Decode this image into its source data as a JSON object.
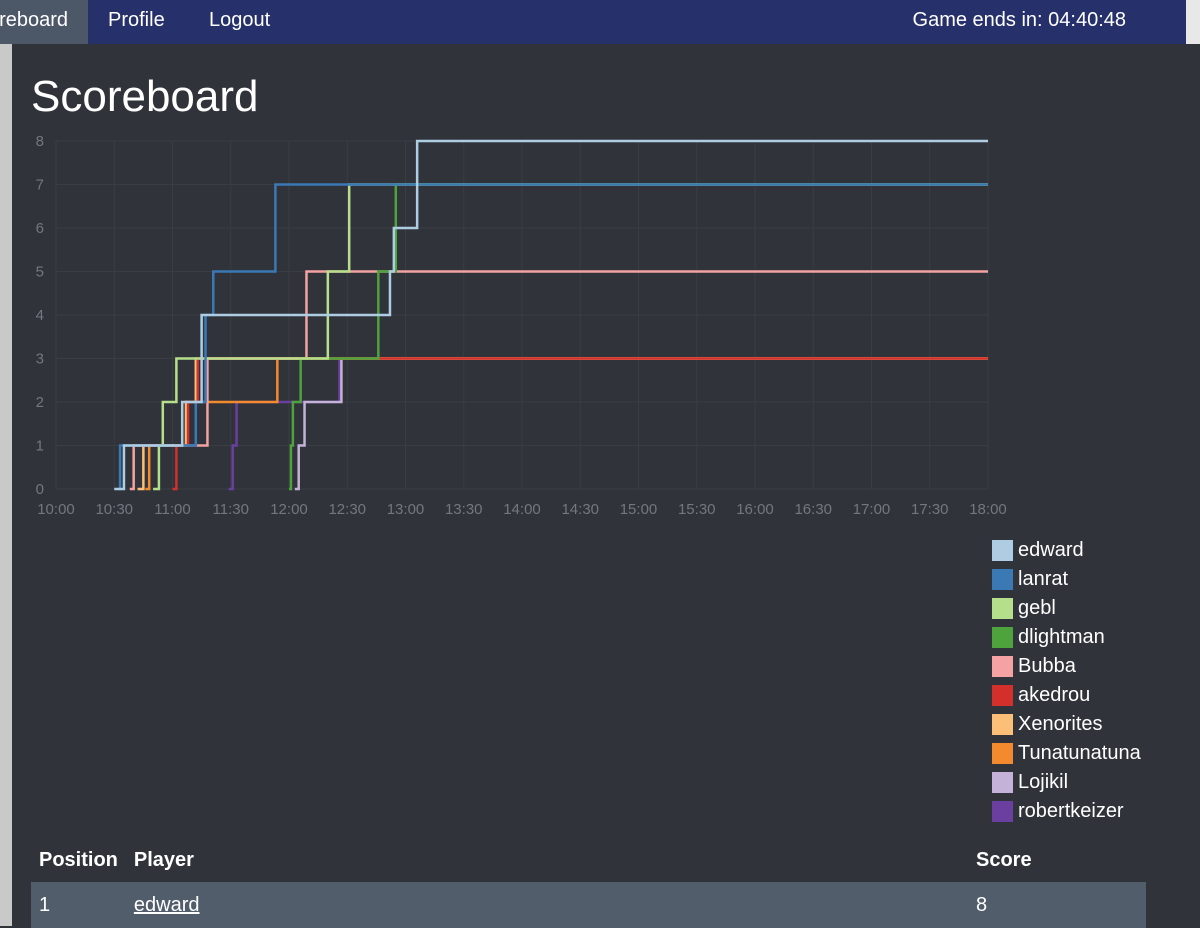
{
  "nav": {
    "items": [
      {
        "label": "reboard",
        "active": true
      },
      {
        "label": "Profile"
      },
      {
        "label": "Logout"
      }
    ],
    "timer": "Game ends in: 04:40:48"
  },
  "page": {
    "title": "Scoreboard"
  },
  "colors": {
    "topbar": "#26306a",
    "background": "#30333a",
    "active_nav": "#4c5768",
    "table_row": "#525d6c"
  },
  "chart_data": {
    "type": "line",
    "step": true,
    "title": "",
    "xlabel": "",
    "ylabel": "",
    "ylim": [
      0,
      8
    ],
    "xlim": [
      "10:00",
      "18:00"
    ],
    "yticks": [
      "0",
      "1",
      "2",
      "3",
      "4",
      "5",
      "6",
      "7",
      "8"
    ],
    "xticks": [
      "10:00",
      "10:30",
      "11:00",
      "11:30",
      "12:00",
      "12:30",
      "13:00",
      "13:30",
      "14:00",
      "14:30",
      "15:00",
      "15:30",
      "16:00",
      "16:30",
      "17:00",
      "17:30",
      "18:00"
    ],
    "grid": true,
    "legend": "bottom-right",
    "series": [
      {
        "name": "edward",
        "color": "#aecde3",
        "points": [
          [
            "10:30",
            0
          ],
          [
            "10:35",
            1
          ],
          [
            "11:05",
            2
          ],
          [
            "11:15",
            4
          ],
          [
            "11:15",
            4
          ],
          [
            "12:50",
            4
          ],
          [
            "12:52",
            5
          ],
          [
            "12:54",
            6
          ],
          [
            "13:06",
            8
          ],
          [
            "18:00",
            8
          ]
        ]
      },
      {
        "name": "lanrat",
        "color": "#3a79b4",
        "points": [
          [
            "10:32",
            0
          ],
          [
            "10:33",
            1
          ],
          [
            "10:48",
            1
          ],
          [
            "11:12",
            2
          ],
          [
            "11:17",
            4
          ],
          [
            "11:21",
            5
          ],
          [
            "11:53",
            5
          ],
          [
            "11:53",
            7
          ],
          [
            "12:30",
            7
          ],
          [
            "12:33",
            7
          ],
          [
            "18:00",
            7
          ]
        ]
      },
      {
        "name": "gebl",
        "color": "#b5df8b",
        "points": [
          [
            "10:50",
            0
          ],
          [
            "10:53",
            1
          ],
          [
            "10:55",
            2
          ],
          [
            "11:02",
            3
          ],
          [
            "11:17",
            3
          ],
          [
            "12:18",
            3
          ],
          [
            "12:20",
            5
          ],
          [
            "12:30",
            5
          ],
          [
            "12:31",
            7
          ],
          [
            "13:00",
            7
          ],
          [
            "18:00",
            7
          ]
        ]
      },
      {
        "name": "dlightman",
        "color": "#4ea33c",
        "points": [
          [
            "12:00",
            0
          ],
          [
            "12:01",
            1
          ],
          [
            "12:02",
            2
          ],
          [
            "12:06",
            3
          ],
          [
            "12:45",
            3
          ],
          [
            "12:46",
            5
          ],
          [
            "12:54",
            5
          ],
          [
            "12:55",
            7
          ],
          [
            "18:00",
            7
          ]
        ]
      },
      {
        "name": "Bubba",
        "color": "#f4a2a2",
        "points": [
          [
            "10:38",
            0
          ],
          [
            "10:40",
            1
          ],
          [
            "11:18",
            3
          ],
          [
            "11:27",
            3
          ],
          [
            "12:07",
            3
          ],
          [
            "12:09",
            5
          ],
          [
            "18:00",
            5
          ]
        ]
      },
      {
        "name": "akedrou",
        "color": "#d3302b",
        "points": [
          [
            "11:00",
            0
          ],
          [
            "11:02",
            1
          ],
          [
            "11:08",
            2
          ],
          [
            "11:13",
            3
          ],
          [
            "11:15",
            3
          ],
          [
            "18:00",
            3
          ]
        ]
      },
      {
        "name": "Xenorites",
        "color": "#fbbf78",
        "points": [
          [
            "10:42",
            0
          ],
          [
            "10:45",
            1
          ],
          [
            "10:58",
            1
          ],
          [
            "11:07",
            2
          ],
          [
            "11:12",
            3
          ],
          [
            "12:22",
            3
          ],
          [
            "18:00",
            3
          ]
        ]
      },
      {
        "name": "Tunatunatuna",
        "color": "#f48a2e",
        "points": [
          [
            "10:46",
            0
          ],
          [
            "10:48",
            1
          ],
          [
            "11:07",
            2
          ],
          [
            "11:30",
            2
          ],
          [
            "11:54",
            3
          ],
          [
            "12:25",
            3
          ],
          [
            "18:00",
            3
          ]
        ]
      },
      {
        "name": "Lojikil",
        "color": "#c4b2d8",
        "points": [
          [
            "12:03",
            0
          ],
          [
            "12:05",
            1
          ],
          [
            "12:08",
            2
          ],
          [
            "12:26",
            2
          ],
          [
            "12:27",
            3
          ],
          [
            "18:00",
            3
          ]
        ]
      },
      {
        "name": "robertkeizer",
        "color": "#6b3fa0",
        "points": [
          [
            "11:29",
            0
          ],
          [
            "11:31",
            1
          ],
          [
            "11:33",
            2
          ],
          [
            "12:25",
            2
          ],
          [
            "12:26",
            3
          ],
          [
            "18:00",
            3
          ]
        ]
      }
    ]
  },
  "table": {
    "headers": {
      "position": "Position",
      "player": "Player",
      "score": "Score"
    },
    "rows": [
      {
        "position": "1",
        "player": "edward",
        "score": "8"
      }
    ]
  }
}
